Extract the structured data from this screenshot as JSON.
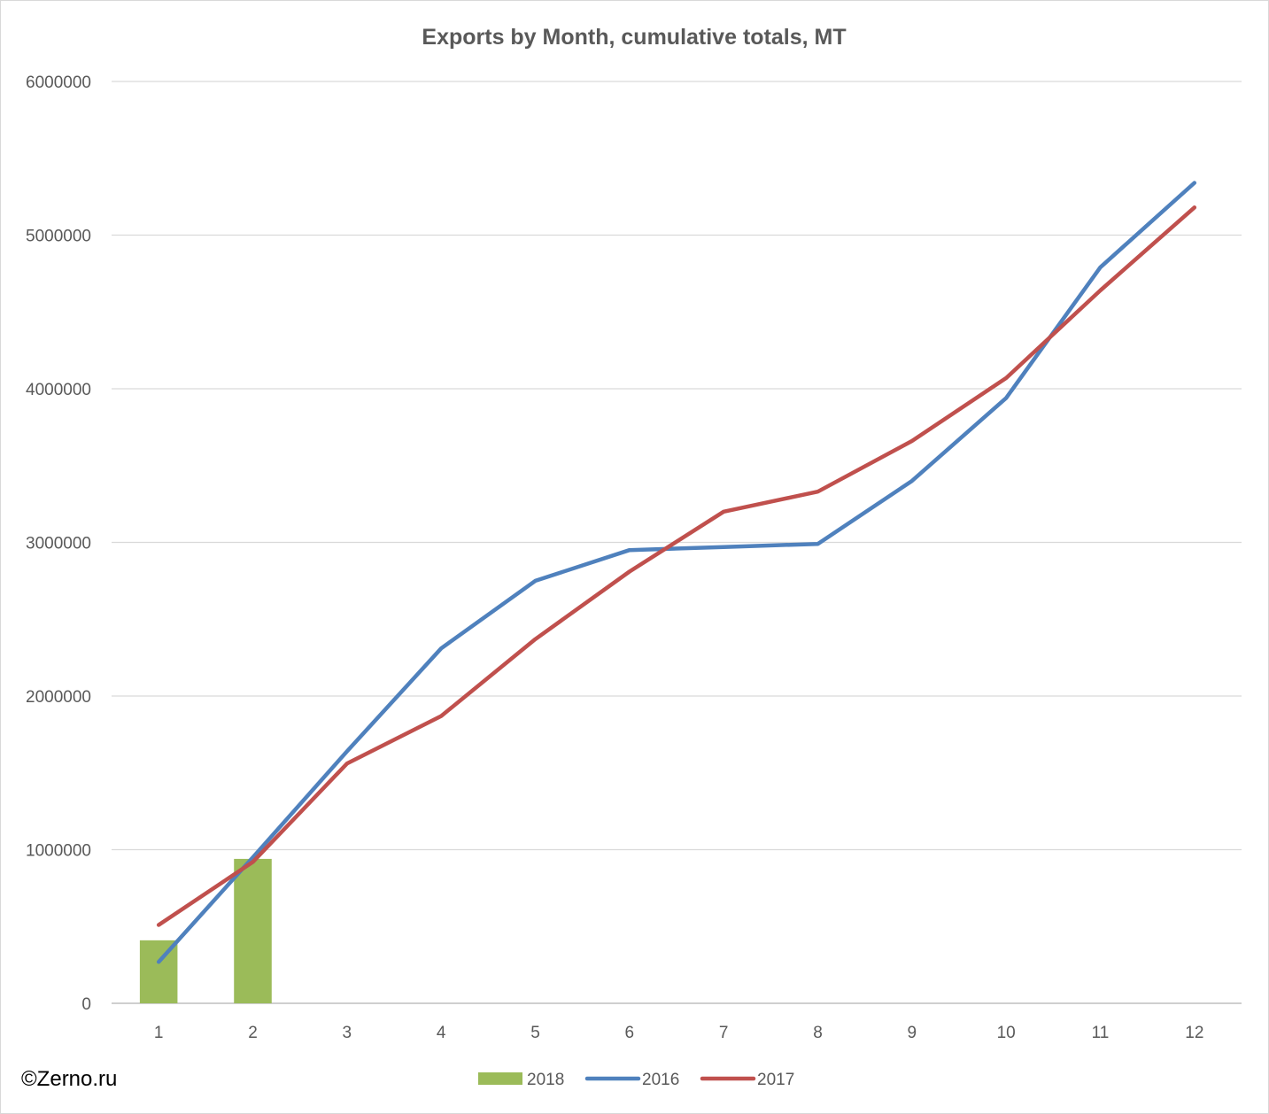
{
  "watermark": "©Zerno.ru",
  "colors": {
    "grid": "#d9d9d9",
    "axis": "#bfbfbf",
    "text": "#595959"
  },
  "chart_data": {
    "type": "bar",
    "title": "Exports by Month, cumulative totals, MT",
    "xlabel": "",
    "ylabel": "",
    "categories": [
      "1",
      "2",
      "3",
      "4",
      "5",
      "6",
      "7",
      "8",
      "9",
      "10",
      "11",
      "12"
    ],
    "ylim": [
      0,
      6000000
    ],
    "yticks": [
      "0",
      "1000000",
      "2000000",
      "3000000",
      "4000000",
      "5000000",
      "6000000"
    ],
    "grid": true,
    "legend_position": "bottom",
    "series": [
      {
        "name": "2018",
        "type": "bar",
        "color": "#9bbb59",
        "values": [
          410000,
          940000,
          null,
          null,
          null,
          null,
          null,
          null,
          null,
          null,
          null,
          null
        ]
      },
      {
        "name": "2016",
        "type": "line",
        "color": "#4f81bd",
        "values": [
          270000,
          950000,
          1640000,
          2310000,
          2750000,
          2950000,
          2970000,
          2990000,
          3400000,
          3940000,
          4790000,
          5340000
        ]
      },
      {
        "name": "2017",
        "type": "line",
        "color": "#c0504d",
        "values": [
          510000,
          920000,
          1560000,
          1870000,
          2370000,
          2810000,
          3200000,
          3330000,
          3660000,
          4070000,
          4640000,
          5180000
        ]
      }
    ]
  }
}
